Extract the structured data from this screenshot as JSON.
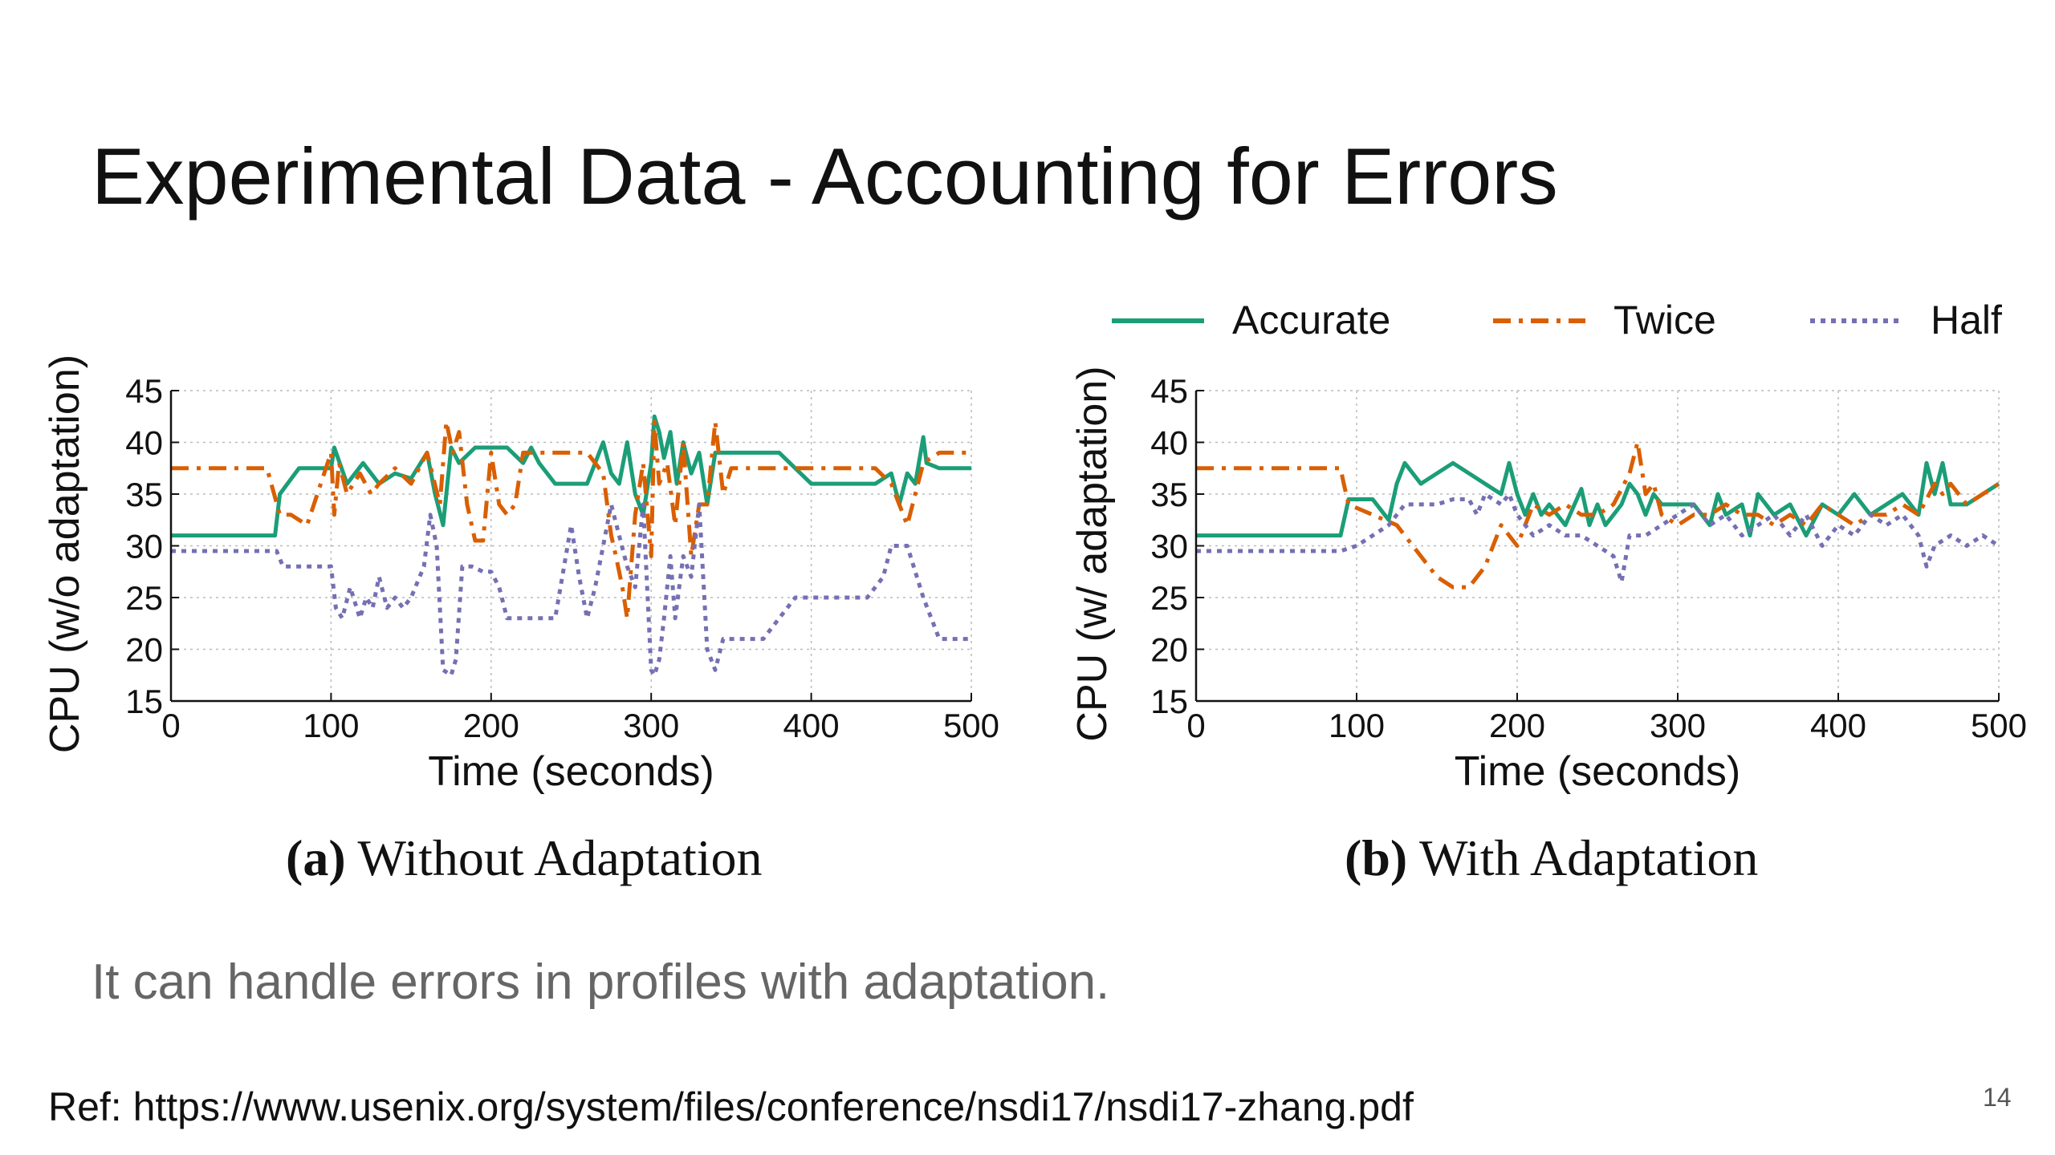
{
  "slide": {
    "title": "Experimental Data - Accounting for Errors",
    "body_text": "It can handle errors in profiles with adaptation.",
    "reference": "Ref: https://www.usenix.org/system/files/conference/nsdi17/nsdi17-zhang.pdf",
    "page_number": "14"
  },
  "legend": {
    "placement": "top-right",
    "entries": [
      {
        "name": "Accurate",
        "color": "#1b9e77",
        "style": "solid"
      },
      {
        "name": "Twice",
        "color": "#d95f02",
        "style": "dash-dot"
      },
      {
        "name": "Half",
        "color": "#7570b3",
        "style": "dotted"
      }
    ]
  },
  "chart_data": [
    {
      "type": "line",
      "panel": "(a)",
      "caption_letter": "(a)",
      "caption_text": "Without Adaptation",
      "xlabel": "Time (seconds)",
      "ylabel": "CPU (w/o adaptation)",
      "xlim": [
        0,
        500
      ],
      "ylim": [
        15,
        45
      ],
      "xticks": [
        "0",
        "100",
        "200",
        "300",
        "400",
        "500"
      ],
      "yticks": [
        "15",
        "20",
        "25",
        "30",
        "35",
        "40",
        "45"
      ],
      "grid": true,
      "series": [
        {
          "name": "Accurate",
          "x": [
            0,
            65,
            68,
            80,
            100,
            102,
            110,
            120,
            130,
            140,
            150,
            160,
            165,
            170,
            175,
            180,
            190,
            200,
            210,
            220,
            225,
            230,
            240,
            250,
            260,
            270,
            275,
            280,
            285,
            290,
            295,
            300,
            302,
            305,
            308,
            312,
            316,
            320,
            325,
            330,
            335,
            340,
            345,
            350,
            360,
            380,
            400,
            420,
            440,
            450,
            455,
            460,
            465,
            470,
            472,
            480,
            500
          ],
          "y": [
            31,
            31,
            35,
            37.5,
            37.5,
            39.5,
            36,
            38,
            36,
            37,
            36.5,
            39,
            35,
            32,
            39.5,
            38,
            39.5,
            39.5,
            39.5,
            38,
            39.5,
            38,
            36,
            36,
            36,
            40,
            37,
            36,
            40,
            35,
            33,
            38,
            42.5,
            41,
            38.5,
            41,
            36,
            40,
            37,
            39,
            34,
            39,
            39,
            39,
            39,
            39,
            36,
            36,
            36,
            37,
            34,
            37,
            36,
            40.5,
            38,
            37.5,
            37.5
          ]
        },
        {
          "name": "Twice",
          "x": [
            0,
            60,
            68,
            75,
            85,
            100,
            102,
            105,
            110,
            118,
            125,
            130,
            140,
            150,
            160,
            168,
            172,
            176,
            180,
            185,
            190,
            195,
            200,
            205,
            210,
            215,
            220,
            225,
            230,
            240,
            260,
            270,
            275,
            278,
            282,
            285,
            290,
            295,
            300,
            302,
            305,
            310,
            315,
            320,
            325,
            330,
            335,
            340,
            345,
            350,
            380,
            400,
            420,
            440,
            450,
            460,
            470,
            480,
            500
          ],
          "y": [
            37.5,
            37.5,
            33,
            33,
            32,
            39,
            33,
            38,
            35,
            37,
            35,
            36,
            37.5,
            36,
            39,
            34,
            42,
            39,
            41,
            34,
            30.5,
            30.5,
            39,
            34,
            33,
            34,
            39,
            39,
            39,
            39,
            39,
            37,
            31,
            29,
            26,
            23,
            33,
            38,
            29,
            42,
            36,
            38,
            32,
            40,
            29,
            34,
            34,
            42,
            35,
            37.5,
            37.5,
            37.5,
            37.5,
            37.5,
            36,
            32,
            38,
            39,
            39
          ]
        },
        {
          "name": "Half",
          "x": [
            0,
            66,
            70,
            85,
            100,
            103,
            107,
            112,
            118,
            122,
            126,
            130,
            135,
            140,
            145,
            150,
            158,
            162,
            166,
            170,
            175,
            178,
            182,
            188,
            195,
            200,
            205,
            210,
            222,
            230,
            240,
            250,
            255,
            260,
            265,
            270,
            275,
            280,
            285,
            290,
            295,
            300,
            302,
            305,
            308,
            312,
            315,
            320,
            325,
            330,
            335,
            340,
            345,
            350,
            370,
            380,
            390,
            420,
            430,
            435,
            445,
            450,
            455,
            460,
            470,
            480,
            500
          ],
          "y": [
            29.5,
            29.5,
            28,
            28,
            28,
            24,
            23,
            26,
            23,
            25,
            24,
            27,
            24,
            25,
            24,
            25,
            28,
            33,
            30,
            18,
            17.5,
            19,
            28,
            28,
            27.5,
            27.5,
            26,
            23,
            23,
            23,
            23,
            32,
            27,
            23,
            26,
            30,
            34,
            31,
            28,
            26,
            34,
            18,
            17.5,
            19,
            23,
            29,
            23,
            29,
            27,
            34,
            20,
            18,
            21,
            21,
            21,
            23,
            25,
            25,
            25,
            25,
            27,
            30,
            30,
            30,
            25,
            21,
            21
          ]
        }
      ]
    },
    {
      "type": "line",
      "panel": "(b)",
      "caption_letter": "(b)",
      "caption_text": "With Adaptation",
      "xlabel": "Time (seconds)",
      "ylabel": "CPU (w/ adaptation)",
      "xlim": [
        0,
        500
      ],
      "ylim": [
        15,
        45
      ],
      "xticks": [
        "0",
        "100",
        "200",
        "300",
        "400",
        "500"
      ],
      "yticks": [
        "15",
        "20",
        "25",
        "30",
        "35",
        "40",
        "45"
      ],
      "grid": true,
      "series": [
        {
          "name": "Accurate",
          "x": [
            0,
            90,
            95,
            110,
            120,
            125,
            130,
            140,
            160,
            170,
            180,
            190,
            195,
            200,
            205,
            210,
            215,
            220,
            230,
            240,
            245,
            250,
            255,
            260,
            265,
            270,
            275,
            280,
            285,
            290,
            300,
            310,
            320,
            325,
            330,
            340,
            345,
            350,
            360,
            370,
            380,
            390,
            400,
            410,
            420,
            440,
            450,
            455,
            460,
            465,
            470,
            480,
            490,
            500
          ],
          "y": [
            31,
            31,
            34.5,
            34.5,
            32.5,
            36,
            38,
            36,
            38,
            37,
            36,
            35,
            38,
            35,
            33,
            35,
            33,
            34,
            32,
            35.5,
            32,
            34,
            32,
            33,
            34,
            36,
            35,
            33,
            35,
            34,
            34,
            34,
            32,
            35,
            33,
            34,
            31,
            35,
            33,
            34,
            31,
            34,
            33,
            35,
            33,
            35,
            33,
            38,
            35,
            38,
            34,
            34,
            35,
            36
          ]
        },
        {
          "name": "Twice",
          "x": [
            0,
            90,
            92,
            95,
            110,
            125,
            140,
            150,
            160,
            170,
            175,
            180,
            190,
            195,
            200,
            205,
            210,
            220,
            230,
            240,
            250,
            260,
            270,
            275,
            280,
            285,
            290,
            300,
            310,
            320,
            330,
            340,
            350,
            360,
            370,
            380,
            390,
            400,
            410,
            420,
            430,
            440,
            450,
            460,
            465,
            470,
            480,
            490,
            500
          ],
          "y": [
            37.5,
            37.5,
            36,
            34,
            33,
            32,
            29,
            27,
            26,
            26,
            27,
            28,
            32,
            31,
            30,
            32,
            34,
            33,
            34,
            33,
            33,
            34,
            37,
            40,
            35,
            36,
            33,
            32,
            33,
            33,
            34,
            33,
            33,
            32,
            33,
            32,
            34,
            33,
            32,
            33,
            33,
            34,
            33,
            36,
            35,
            36,
            34,
            35,
            36
          ]
        },
        {
          "name": "Half",
          "x": [
            0,
            90,
            100,
            110,
            120,
            130,
            140,
            150,
            160,
            170,
            175,
            180,
            190,
            195,
            200,
            210,
            220,
            230,
            240,
            250,
            260,
            265,
            270,
            280,
            290,
            300,
            310,
            320,
            330,
            340,
            350,
            360,
            370,
            380,
            390,
            400,
            410,
            420,
            430,
            440,
            450,
            455,
            460,
            470,
            480,
            490,
            500
          ],
          "y": [
            29.5,
            29.5,
            30,
            31,
            32,
            34,
            34,
            34,
            34.5,
            34.5,
            33,
            35,
            34,
            35,
            33,
            31,
            32,
            31,
            31,
            30,
            29,
            26.5,
            31,
            31,
            32,
            33,
            34,
            32,
            33,
            31,
            32,
            33,
            31,
            33,
            30,
            32,
            31,
            33,
            32,
            33,
            31,
            28,
            30,
            31,
            30,
            31,
            30
          ]
        }
      ]
    }
  ]
}
